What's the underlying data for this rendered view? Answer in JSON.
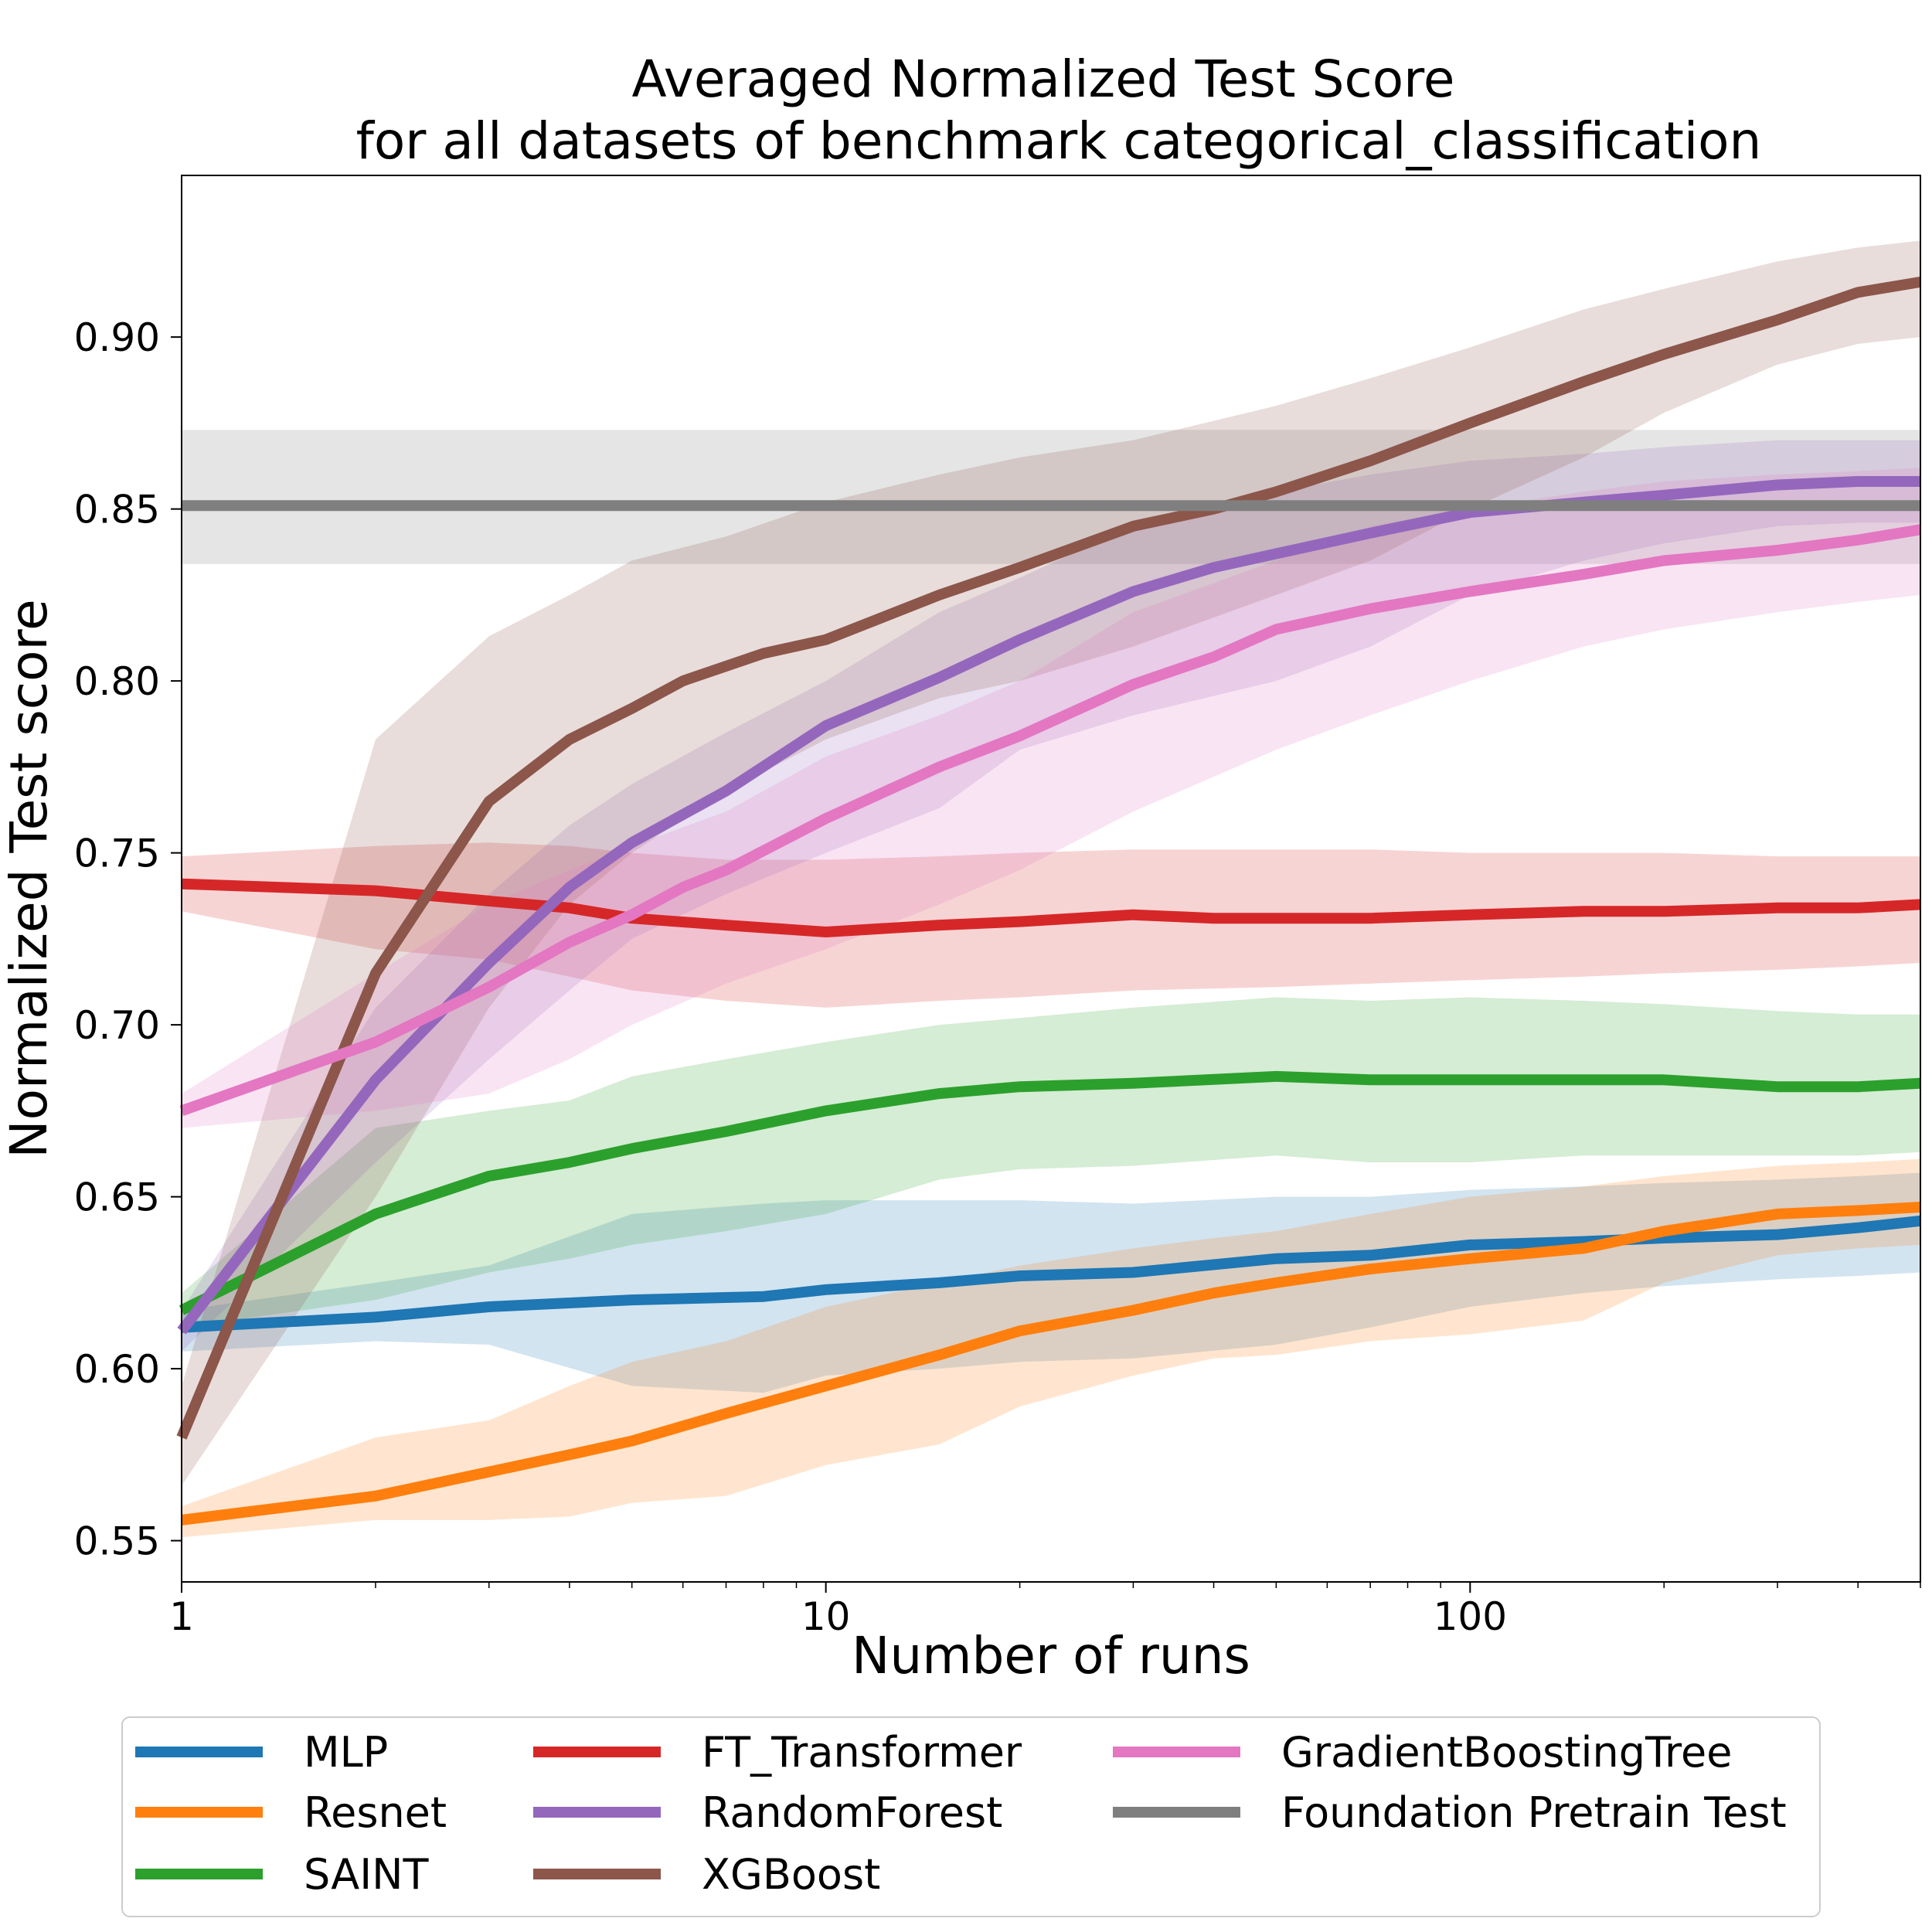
{
  "chart_data": {
    "type": "line",
    "title": "Averaged Normalized Test Score",
    "subtitle": "for all datasets of benchmark categorical_classification",
    "xlabel": "Number of runs",
    "ylabel": "Normalized Test score",
    "xscale": "log",
    "xlim": [
      1,
      500
    ],
    "ylim": [
      0.538,
      0.947
    ],
    "x_ticks": [
      1,
      10,
      100
    ],
    "x_tick_labels": [
      "1",
      "10",
      "100"
    ],
    "y_ticks": [
      0.55,
      0.6,
      0.65,
      0.7,
      0.75,
      0.8,
      0.85,
      0.9
    ],
    "y_tick_labels": [
      "0.55",
      "0.60",
      "0.65",
      "0.70",
      "0.75",
      "0.80",
      "0.85",
      "0.90"
    ],
    "grid": false,
    "legend_position": "bottom",
    "series": [
      {
        "name": "MLP",
        "color": "#1f77b4",
        "points": [
          [
            1,
            0.612
          ],
          [
            2,
            0.615
          ],
          [
            3,
            0.618
          ],
          [
            5,
            0.62
          ],
          [
            8,
            0.621
          ],
          [
            10,
            0.623
          ],
          [
            15,
            0.625
          ],
          [
            20,
            0.627
          ],
          [
            30,
            0.628
          ],
          [
            50,
            0.632
          ],
          [
            70,
            0.633
          ],
          [
            100,
            0.636
          ],
          [
            150,
            0.637
          ],
          [
            200,
            0.638
          ],
          [
            300,
            0.639
          ],
          [
            400,
            0.641
          ],
          [
            500,
            0.643
          ]
        ],
        "band": [
          [
            1,
            0.605,
            0.617
          ],
          [
            2,
            0.608,
            0.625
          ],
          [
            3,
            0.607,
            0.63
          ],
          [
            5,
            0.595,
            0.645
          ],
          [
            8,
            0.593,
            0.648
          ],
          [
            10,
            0.598,
            0.649
          ],
          [
            15,
            0.6,
            0.649
          ],
          [
            20,
            0.602,
            0.649
          ],
          [
            30,
            0.603,
            0.648
          ],
          [
            50,
            0.607,
            0.65
          ],
          [
            70,
            0.612,
            0.65
          ],
          [
            100,
            0.618,
            0.652
          ],
          [
            150,
            0.622,
            0.653
          ],
          [
            200,
            0.624,
            0.654
          ],
          [
            300,
            0.626,
            0.655
          ],
          [
            400,
            0.627,
            0.656
          ],
          [
            500,
            0.628,
            0.657
          ]
        ]
      },
      {
        "name": "Resnet",
        "color": "#ff7f0e",
        "points": [
          [
            1,
            0.556
          ],
          [
            2,
            0.563
          ],
          [
            3,
            0.57
          ],
          [
            4,
            0.575
          ],
          [
            5,
            0.579
          ],
          [
            7,
            0.587
          ],
          [
            10,
            0.595
          ],
          [
            15,
            0.604
          ],
          [
            20,
            0.611
          ],
          [
            30,
            0.617
          ],
          [
            40,
            0.622
          ],
          [
            50,
            0.625
          ],
          [
            70,
            0.629
          ],
          [
            100,
            0.632
          ],
          [
            150,
            0.635
          ],
          [
            200,
            0.64
          ],
          [
            300,
            0.645
          ],
          [
            400,
            0.646
          ],
          [
            500,
            0.647
          ]
        ],
        "band": [
          [
            1,
            0.551,
            0.56
          ],
          [
            2,
            0.556,
            0.58
          ],
          [
            3,
            0.556,
            0.585
          ],
          [
            4,
            0.557,
            0.595
          ],
          [
            5,
            0.561,
            0.602
          ],
          [
            7,
            0.563,
            0.608
          ],
          [
            10,
            0.572,
            0.618
          ],
          [
            15,
            0.578,
            0.625
          ],
          [
            20,
            0.589,
            0.63
          ],
          [
            30,
            0.598,
            0.635
          ],
          [
            40,
            0.603,
            0.638
          ],
          [
            50,
            0.604,
            0.64
          ],
          [
            70,
            0.608,
            0.645
          ],
          [
            100,
            0.61,
            0.65
          ],
          [
            150,
            0.614,
            0.653
          ],
          [
            200,
            0.625,
            0.656
          ],
          [
            300,
            0.633,
            0.659
          ],
          [
            400,
            0.635,
            0.66
          ],
          [
            500,
            0.636,
            0.661
          ]
        ]
      },
      {
        "name": "SAINT",
        "color": "#2ca02c",
        "points": [
          [
            1,
            0.617
          ],
          [
            2,
            0.645
          ],
          [
            3,
            0.656
          ],
          [
            4,
            0.66
          ],
          [
            5,
            0.664
          ],
          [
            7,
            0.669
          ],
          [
            10,
            0.675
          ],
          [
            15,
            0.68
          ],
          [
            20,
            0.682
          ],
          [
            30,
            0.683
          ],
          [
            50,
            0.685
          ],
          [
            70,
            0.684
          ],
          [
            100,
            0.684
          ],
          [
            150,
            0.684
          ],
          [
            200,
            0.684
          ],
          [
            300,
            0.682
          ],
          [
            400,
            0.682
          ],
          [
            500,
            0.683
          ]
        ],
        "band": [
          [
            1,
            0.612,
            0.622
          ],
          [
            2,
            0.62,
            0.67
          ],
          [
            3,
            0.628,
            0.675
          ],
          [
            4,
            0.632,
            0.678
          ],
          [
            5,
            0.636,
            0.685
          ],
          [
            7,
            0.64,
            0.69
          ],
          [
            10,
            0.645,
            0.695
          ],
          [
            15,
            0.655,
            0.7
          ],
          [
            20,
            0.658,
            0.702
          ],
          [
            30,
            0.659,
            0.705
          ],
          [
            50,
            0.662,
            0.708
          ],
          [
            70,
            0.66,
            0.707
          ],
          [
            100,
            0.66,
            0.708
          ],
          [
            150,
            0.662,
            0.707
          ],
          [
            200,
            0.662,
            0.706
          ],
          [
            300,
            0.662,
            0.704
          ],
          [
            400,
            0.662,
            0.703
          ],
          [
            500,
            0.663,
            0.703
          ]
        ]
      },
      {
        "name": "FT_Transformer",
        "color": "#d62728",
        "points": [
          [
            1,
            0.741
          ],
          [
            2,
            0.739
          ],
          [
            3,
            0.736
          ],
          [
            4,
            0.734
          ],
          [
            5,
            0.731
          ],
          [
            7,
            0.729
          ],
          [
            10,
            0.727
          ],
          [
            15,
            0.729
          ],
          [
            20,
            0.73
          ],
          [
            30,
            0.732
          ],
          [
            40,
            0.731
          ],
          [
            50,
            0.731
          ],
          [
            70,
            0.731
          ],
          [
            100,
            0.732
          ],
          [
            150,
            0.733
          ],
          [
            200,
            0.733
          ],
          [
            300,
            0.734
          ],
          [
            400,
            0.734
          ],
          [
            500,
            0.735
          ]
        ],
        "band": [
          [
            1,
            0.733,
            0.749
          ],
          [
            2,
            0.722,
            0.752
          ],
          [
            3,
            0.719,
            0.753
          ],
          [
            4,
            0.714,
            0.752
          ],
          [
            5,
            0.71,
            0.75
          ],
          [
            7,
            0.707,
            0.748
          ],
          [
            10,
            0.705,
            0.748
          ],
          [
            15,
            0.707,
            0.749
          ],
          [
            20,
            0.708,
            0.75
          ],
          [
            30,
            0.71,
            0.751
          ],
          [
            50,
            0.711,
            0.751
          ],
          [
            70,
            0.712,
            0.751
          ],
          [
            100,
            0.713,
            0.75
          ],
          [
            150,
            0.714,
            0.75
          ],
          [
            200,
            0.715,
            0.75
          ],
          [
            300,
            0.716,
            0.749
          ],
          [
            400,
            0.717,
            0.749
          ],
          [
            500,
            0.718,
            0.749
          ]
        ]
      },
      {
        "name": "RandomForest",
        "color": "#9467bd",
        "points": [
          [
            1,
            0.611
          ],
          [
            2,
            0.684
          ],
          [
            3,
            0.718
          ],
          [
            4,
            0.74
          ],
          [
            5,
            0.753
          ],
          [
            7,
            0.768
          ],
          [
            10,
            0.787
          ],
          [
            15,
            0.801
          ],
          [
            20,
            0.812
          ],
          [
            30,
            0.826
          ],
          [
            40,
            0.833
          ],
          [
            50,
            0.837
          ],
          [
            70,
            0.843
          ],
          [
            100,
            0.849
          ],
          [
            150,
            0.852
          ],
          [
            200,
            0.854
          ],
          [
            300,
            0.857
          ],
          [
            400,
            0.858
          ],
          [
            500,
            0.858
          ]
        ],
        "band": [
          [
            1,
            0.605,
            0.617
          ],
          [
            2,
            0.66,
            0.705
          ],
          [
            3,
            0.69,
            0.738
          ],
          [
            4,
            0.71,
            0.758
          ],
          [
            5,
            0.725,
            0.77
          ],
          [
            7,
            0.738,
            0.785
          ],
          [
            10,
            0.75,
            0.8
          ],
          [
            15,
            0.763,
            0.82
          ],
          [
            20,
            0.78,
            0.83
          ],
          [
            30,
            0.79,
            0.845
          ],
          [
            50,
            0.8,
            0.855
          ],
          [
            70,
            0.81,
            0.86
          ],
          [
            100,
            0.825,
            0.864
          ],
          [
            150,
            0.835,
            0.866
          ],
          [
            200,
            0.84,
            0.868
          ],
          [
            300,
            0.845,
            0.87
          ],
          [
            400,
            0.846,
            0.87
          ],
          [
            500,
            0.846,
            0.87
          ]
        ]
      },
      {
        "name": "XGBoost",
        "color": "#8c564b",
        "points": [
          [
            1,
            0.58
          ],
          [
            2,
            0.715
          ],
          [
            3,
            0.765
          ],
          [
            4,
            0.783
          ],
          [
            5,
            0.792
          ],
          [
            6,
            0.8
          ],
          [
            8,
            0.808
          ],
          [
            10,
            0.812
          ],
          [
            15,
            0.825
          ],
          [
            20,
            0.833
          ],
          [
            30,
            0.845
          ],
          [
            40,
            0.85
          ],
          [
            50,
            0.855
          ],
          [
            70,
            0.864
          ],
          [
            100,
            0.875
          ],
          [
            150,
            0.887
          ],
          [
            200,
            0.895
          ],
          [
            300,
            0.905
          ],
          [
            400,
            0.913
          ],
          [
            500,
            0.916
          ]
        ],
        "band": [
          [
            1,
            0.566,
            0.595
          ],
          [
            2,
            0.65,
            0.783
          ],
          [
            3,
            0.705,
            0.813
          ],
          [
            4,
            0.735,
            0.825
          ],
          [
            5,
            0.75,
            0.835
          ],
          [
            7,
            0.768,
            0.842
          ],
          [
            10,
            0.783,
            0.852
          ],
          [
            15,
            0.795,
            0.86
          ],
          [
            20,
            0.8,
            0.865
          ],
          [
            30,
            0.81,
            0.87
          ],
          [
            50,
            0.825,
            0.88
          ],
          [
            70,
            0.835,
            0.888
          ],
          [
            100,
            0.85,
            0.897
          ],
          [
            150,
            0.865,
            0.908
          ],
          [
            200,
            0.878,
            0.914
          ],
          [
            300,
            0.892,
            0.922
          ],
          [
            400,
            0.898,
            0.926
          ],
          [
            500,
            0.9,
            0.928
          ]
        ]
      },
      {
        "name": "GradientBoostingTree",
        "color": "#e377c2",
        "points": [
          [
            1,
            0.675
          ],
          [
            2,
            0.695
          ],
          [
            3,
            0.711
          ],
          [
            4,
            0.724
          ],
          [
            5,
            0.732
          ],
          [
            6,
            0.74
          ],
          [
            7,
            0.745
          ],
          [
            10,
            0.76
          ],
          [
            15,
            0.775
          ],
          [
            20,
            0.784
          ],
          [
            30,
            0.799
          ],
          [
            40,
            0.807
          ],
          [
            50,
            0.815
          ],
          [
            70,
            0.821
          ],
          [
            100,
            0.826
          ],
          [
            150,
            0.831
          ],
          [
            200,
            0.835
          ],
          [
            300,
            0.838
          ],
          [
            400,
            0.841
          ],
          [
            500,
            0.844
          ]
        ],
        "band": [
          [
            1,
            0.67,
            0.68
          ],
          [
            2,
            0.675,
            0.715
          ],
          [
            3,
            0.68,
            0.735
          ],
          [
            4,
            0.69,
            0.745
          ],
          [
            5,
            0.7,
            0.752
          ],
          [
            7,
            0.712,
            0.762
          ],
          [
            10,
            0.722,
            0.778
          ],
          [
            15,
            0.735,
            0.79
          ],
          [
            20,
            0.745,
            0.8
          ],
          [
            30,
            0.762,
            0.82
          ],
          [
            50,
            0.78,
            0.835
          ],
          [
            70,
            0.79,
            0.845
          ],
          [
            100,
            0.8,
            0.85
          ],
          [
            150,
            0.81,
            0.855
          ],
          [
            200,
            0.815,
            0.858
          ],
          [
            300,
            0.82,
            0.86
          ],
          [
            400,
            0.823,
            0.861
          ],
          [
            500,
            0.825,
            0.862
          ]
        ]
      },
      {
        "name": "Foundation Pretrain Test",
        "color": "#7f7f7f",
        "points": [
          [
            1,
            0.851
          ],
          [
            500,
            0.851
          ]
        ],
        "band": [
          [
            1,
            0.834,
            0.873
          ],
          [
            500,
            0.834,
            0.873
          ]
        ]
      }
    ]
  }
}
